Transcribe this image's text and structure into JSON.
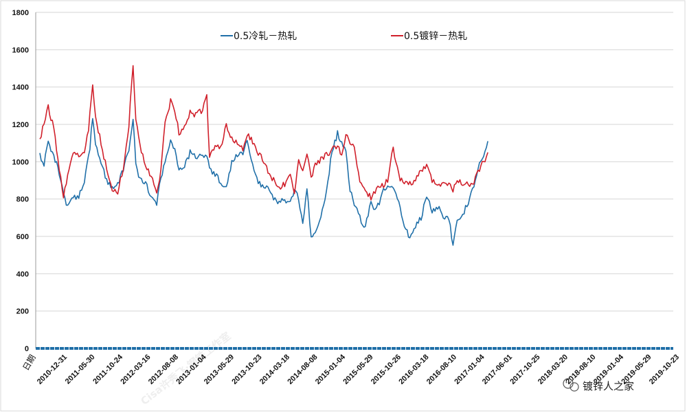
{
  "chart_data": {
    "type": "line",
    "xlabel": "日期",
    "ylabel": "",
    "ylim": [
      0,
      1800
    ],
    "yticks": [
      0,
      200,
      400,
      600,
      800,
      1000,
      1200,
      1400,
      1600,
      1800
    ],
    "grid": true,
    "legend_position": "top",
    "x_tick_labels": [
      "2010-12-31",
      "2011-05-30",
      "2011-10-24",
      "2012-03-16",
      "2012-08-08",
      "2013-01-04",
      "2013-05-29",
      "2013-10-23",
      "2014-03-18",
      "2014-08-08",
      "2015-01-04",
      "2015-05-29",
      "2015-10-26",
      "2016-03-18",
      "2016-08-10",
      "2017-01-04",
      "2017-06-01",
      "2017-10-25",
      "2018-03-20",
      "2018-08-10",
      "2019-01-04",
      "2019-05-29",
      "2019-10-23"
    ],
    "series": [
      {
        "name": "0.5冷轧－热轧",
        "color": "#1f6fa8",
        "values": [
          [
            0,
            1030
          ],
          [
            0.15,
            990
          ],
          [
            0.3,
            1100
          ],
          [
            0.5,
            1040
          ],
          [
            0.7,
            930
          ],
          [
            0.85,
            820
          ],
          [
            1.0,
            760
          ],
          [
            1.15,
            800
          ],
          [
            1.4,
            820
          ],
          [
            1.6,
            900
          ],
          [
            1.8,
            1080
          ],
          [
            1.9,
            1240
          ],
          [
            2.0,
            1100
          ],
          [
            2.2,
            1000
          ],
          [
            2.4,
            900
          ],
          [
            2.6,
            870
          ],
          [
            2.8,
            880
          ],
          [
            3.0,
            960
          ],
          [
            3.2,
            1060
          ],
          [
            3.35,
            1220
          ],
          [
            3.45,
            1000
          ],
          [
            3.6,
            900
          ],
          [
            3.8,
            880
          ],
          [
            4.0,
            820
          ],
          [
            4.2,
            760
          ],
          [
            4.3,
            870
          ],
          [
            4.5,
            1000
          ],
          [
            4.7,
            1100
          ],
          [
            4.85,
            1070
          ],
          [
            5.0,
            960
          ],
          [
            5.2,
            980
          ],
          [
            5.4,
            1050
          ],
          [
            5.6,
            1020
          ],
          [
            5.8,
            1030
          ],
          [
            6.0,
            1040
          ],
          [
            6.1,
            960
          ],
          [
            6.3,
            930
          ],
          [
            6.5,
            890
          ],
          [
            6.7,
            870
          ],
          [
            6.9,
            1000
          ],
          [
            7.1,
            1030
          ],
          [
            7.3,
            1050
          ],
          [
            7.45,
            1130
          ],
          [
            7.6,
            1000
          ],
          [
            7.8,
            900
          ],
          [
            8.0,
            860
          ],
          [
            8.2,
            880
          ],
          [
            8.4,
            810
          ],
          [
            8.6,
            780
          ],
          [
            8.8,
            800
          ],
          [
            9.0,
            780
          ],
          [
            9.15,
            850
          ],
          [
            9.3,
            800
          ],
          [
            9.45,
            680
          ],
          [
            9.6,
            850
          ],
          [
            9.75,
            600
          ],
          [
            9.9,
            620
          ],
          [
            10.1,
            700
          ],
          [
            10.3,
            850
          ],
          [
            10.5,
            1050
          ],
          [
            10.7,
            1150
          ],
          [
            10.85,
            1100
          ],
          [
            11.0,
            1050
          ],
          [
            11.15,
            850
          ],
          [
            11.3,
            780
          ],
          [
            11.5,
            700
          ],
          [
            11.7,
            650
          ],
          [
            11.9,
            780
          ],
          [
            12.1,
            740
          ],
          [
            12.3,
            830
          ],
          [
            12.5,
            870
          ],
          [
            12.7,
            850
          ],
          [
            12.9,
            790
          ],
          [
            13.1,
            640
          ],
          [
            13.3,
            600
          ],
          [
            13.5,
            660
          ],
          [
            13.7,
            700
          ],
          [
            13.9,
            820
          ],
          [
            14.1,
            740
          ],
          [
            14.3,
            760
          ],
          [
            14.5,
            700
          ],
          [
            14.7,
            690
          ],
          [
            14.85,
            560
          ],
          [
            15.0,
            690
          ],
          [
            15.2,
            720
          ],
          [
            15.4,
            780
          ],
          [
            15.6,
            870
          ],
          [
            15.8,
            980
          ],
          [
            16.0,
            1050
          ],
          [
            16.1,
            1110
          ]
        ]
      },
      {
        "name": "0.5镀锌－热轧",
        "color": "#d01f2a",
        "values": [
          [
            0,
            1120
          ],
          [
            0.15,
            1200
          ],
          [
            0.3,
            1290
          ],
          [
            0.5,
            1180
          ],
          [
            0.7,
            960
          ],
          [
            0.85,
            810
          ],
          [
            1.0,
            930
          ],
          [
            1.2,
            1060
          ],
          [
            1.4,
            1020
          ],
          [
            1.6,
            1050
          ],
          [
            1.75,
            1180
          ],
          [
            1.9,
            1420
          ],
          [
            2.0,
            1230
          ],
          [
            2.2,
            1100
          ],
          [
            2.4,
            960
          ],
          [
            2.6,
            860
          ],
          [
            2.8,
            840
          ],
          [
            3.0,
            960
          ],
          [
            3.2,
            1200
          ],
          [
            3.35,
            1530
          ],
          [
            3.45,
            1220
          ],
          [
            3.6,
            1090
          ],
          [
            3.8,
            980
          ],
          [
            4.0,
            920
          ],
          [
            4.2,
            830
          ],
          [
            4.3,
            900
          ],
          [
            4.5,
            1200
          ],
          [
            4.7,
            1330
          ],
          [
            4.85,
            1280
          ],
          [
            5.0,
            1150
          ],
          [
            5.2,
            1200
          ],
          [
            5.4,
            1260
          ],
          [
            5.6,
            1250
          ],
          [
            5.8,
            1270
          ],
          [
            6.0,
            1350
          ],
          [
            6.1,
            1020
          ],
          [
            6.3,
            1090
          ],
          [
            6.5,
            1080
          ],
          [
            6.7,
            1190
          ],
          [
            6.9,
            1130
          ],
          [
            7.1,
            1100
          ],
          [
            7.3,
            1070
          ],
          [
            7.45,
            1140
          ],
          [
            7.6,
            1120
          ],
          [
            7.8,
            1060
          ],
          [
            8.0,
            1020
          ],
          [
            8.2,
            950
          ],
          [
            8.4,
            900
          ],
          [
            8.6,
            860
          ],
          [
            8.8,
            880
          ],
          [
            9.0,
            920
          ],
          [
            9.15,
            830
          ],
          [
            9.3,
            1000
          ],
          [
            9.45,
            960
          ],
          [
            9.6,
            1050
          ],
          [
            9.75,
            910
          ],
          [
            9.9,
            980
          ],
          [
            10.1,
            1010
          ],
          [
            10.3,
            1040
          ],
          [
            10.5,
            1060
          ],
          [
            10.7,
            1090
          ],
          [
            10.85,
            1030
          ],
          [
            11.0,
            1150
          ],
          [
            11.15,
            1100
          ],
          [
            11.3,
            1080
          ],
          [
            11.5,
            880
          ],
          [
            11.7,
            860
          ],
          [
            11.9,
            800
          ],
          [
            12.1,
            860
          ],
          [
            12.3,
            870
          ],
          [
            12.5,
            900
          ],
          [
            12.7,
            1080
          ],
          [
            12.9,
            920
          ],
          [
            13.1,
            880
          ],
          [
            13.3,
            880
          ],
          [
            13.5,
            900
          ],
          [
            13.7,
            950
          ],
          [
            13.9,
            980
          ],
          [
            14.1,
            900
          ],
          [
            14.3,
            880
          ],
          [
            14.5,
            890
          ],
          [
            14.7,
            880
          ],
          [
            14.85,
            850
          ],
          [
            15.0,
            910
          ],
          [
            15.2,
            870
          ],
          [
            15.4,
            880
          ],
          [
            15.6,
            890
          ],
          [
            15.8,
            960
          ],
          [
            16.0,
            1010
          ],
          [
            16.1,
            1050
          ]
        ]
      }
    ],
    "zero_line": {
      "value": 0,
      "color": "#1f6fa8",
      "style": "dashed"
    }
  },
  "watermark": {
    "diagonal_text": "Cisa许秀飞·钢铁工作室",
    "badge_text": "镀锌人之家",
    "badge_icon": "wechat-icon"
  }
}
